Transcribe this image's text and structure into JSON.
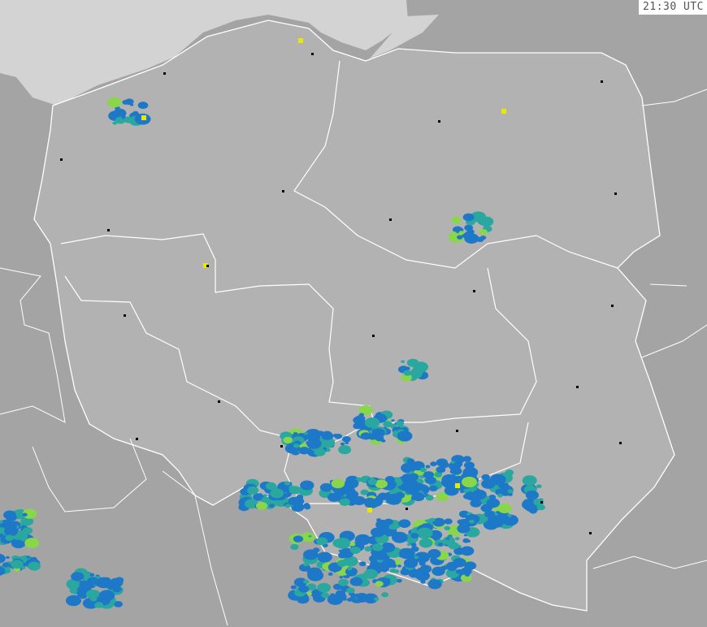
{
  "timestamp": "21:30 UTC",
  "colors": {
    "background": "#a4a4a4",
    "sea": "#d3d3d3",
    "country": "#b2b2b2",
    "border": "#ffffff",
    "radar_low": "#1e78c8",
    "radar_mid": "#2aa8a0",
    "radar_high": "#e8e800"
  }
}
